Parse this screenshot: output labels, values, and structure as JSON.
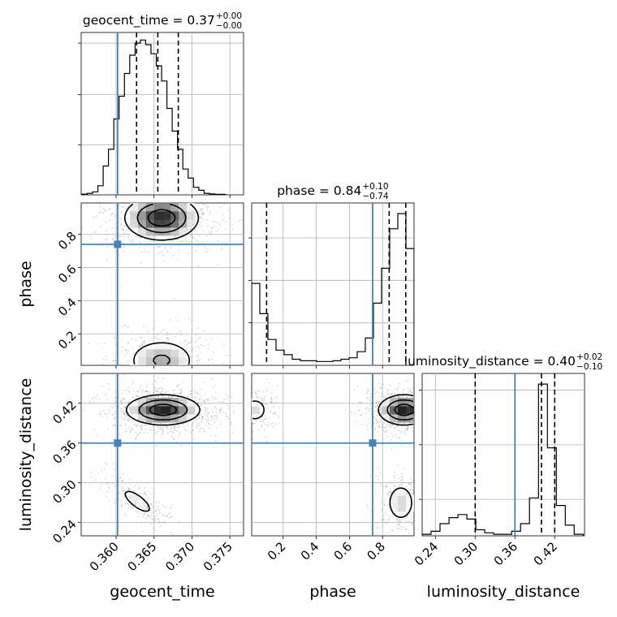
{
  "chart_data": {
    "type": "corner",
    "parameters": [
      "geocent_time",
      "phase",
      "luminosity_distance"
    ],
    "truth_color": "#4682b4",
    "truths": {
      "geocent_time": 0.3602,
      "phase": 0.74,
      "luminosity_distance": 0.36
    },
    "titles": {
      "geocent_time": {
        "name": "geocent_time",
        "value": "0.37",
        "plus": "+0.00",
        "minus": "−0.00"
      },
      "phase": {
        "name": "phase",
        "value": "0.84",
        "plus": "+0.10",
        "minus": "−0.74"
      },
      "luminosity_distance": {
        "name": "luminosity_distance",
        "value": "0.40",
        "plus": "+0.02",
        "minus": "−0.10"
      }
    },
    "axes": {
      "geocent_time": {
        "label": "geocent_time",
        "range": [
          0.3554,
          0.3768
        ],
        "ticks": [
          0.36,
          0.365,
          0.37,
          0.375
        ],
        "tick_labels": [
          "0.360",
          "0.365",
          "0.370",
          "0.375"
        ]
      },
      "phase": {
        "label": "phase",
        "range": [
          0.01,
          0.99
        ],
        "ticks": [
          0.2,
          0.4,
          0.6,
          0.8
        ],
        "tick_labels": [
          "0.2",
          "0.4",
          "0.6",
          "0.8"
        ]
      },
      "luminosity_distance": {
        "label": "luminosity_distance",
        "range": [
          0.22,
          0.465
        ],
        "ticks": [
          0.24,
          0.3,
          0.36,
          0.42
        ],
        "tick_labels": [
          "0.24",
          "0.30",
          "0.36",
          "0.42"
        ]
      }
    },
    "quantile_lines": {
      "geocent_time": [
        0.3627,
        0.3655,
        0.3682
      ],
      "phase": [
        0.1,
        0.84,
        0.94
      ],
      "luminosity_distance": [
        0.3,
        0.4,
        0.42
      ]
    },
    "marginals": {
      "geocent_time": {
        "edges": [
          0.3555,
          0.3562,
          0.3569,
          0.3576,
          0.3583,
          0.359,
          0.3597,
          0.3604,
          0.3611,
          0.3618,
          0.3625,
          0.3632,
          0.3639,
          0.3646,
          0.3653,
          0.366,
          0.3667,
          0.3674,
          0.3681,
          0.3688,
          0.3695,
          0.3702,
          0.3709,
          0.3716,
          0.3723,
          0.373,
          0.3737,
          0.3744
        ],
        "counts": [
          0.5,
          1,
          2,
          6,
          19,
          30,
          50,
          65,
          80,
          92,
          100,
          102,
          99,
          93,
          85,
          75,
          57,
          42,
          30,
          17,
          11,
          5,
          3,
          1,
          0.6,
          0.3,
          0.3
        ],
        "ymax": 107,
        "grid_y": [
          33,
          66,
          100
        ]
      },
      "phase": {
        "edges": [
          0.01,
          0.059,
          0.108,
          0.157,
          0.206,
          0.255,
          0.304,
          0.353,
          0.402,
          0.451,
          0.5,
          0.549,
          0.598,
          0.647,
          0.696,
          0.745,
          0.794,
          0.843,
          0.892,
          0.941,
          0.99
        ],
        "counts": [
          54,
          34,
          17,
          10,
          7,
          4,
          3,
          3,
          2.5,
          2.5,
          3,
          4,
          5,
          9,
          18,
          41,
          64,
          90,
          100,
          77
        ],
        "ymax": 107,
        "grid_y": [
          28,
          56,
          84
        ]
      },
      "luminosity_distance": {
        "edges": [
          0.22,
          0.2335,
          0.247,
          0.2605,
          0.274,
          0.2875,
          0.301,
          0.3145,
          0.328,
          0.3415,
          0.355,
          0.3685,
          0.382,
          0.3955,
          0.409,
          0.4225,
          0.436,
          0.4495,
          0.463
        ],
        "counts": [
          1,
          3,
          8,
          12,
          14,
          11,
          4,
          2,
          1,
          1,
          3,
          8,
          25,
          100,
          58,
          20,
          7,
          1
        ],
        "ymax": 107,
        "grid_y": [
          24,
          60,
          96
        ]
      }
    },
    "joint": {
      "phase|geocent_time": {
        "modes": [
          {
            "x": 0.366,
            "y": 0.9,
            "sx": 0.00235,
            "sy": 0.065,
            "w": 1.0
          },
          {
            "x": 0.366,
            "y": 0.04,
            "sx": 0.00225,
            "sy": 0.065,
            "w": 0.45
          }
        ]
      },
      "luminosity_distance|geocent_time": {
        "modes": [
          {
            "x": 0.3662,
            "y": 0.41,
            "sx": 0.00235,
            "sy": 0.011,
            "w": 1.0
          },
          {
            "x": 0.3628,
            "y": 0.272,
            "sx": 0.0016,
            "sy": 0.015,
            "w": 0.2,
            "rho": -0.75
          }
        ]
      },
      "luminosity_distance|phase": {
        "modes": [
          {
            "x": 0.93,
            "y": 0.41,
            "sx": 0.075,
            "sy": 0.011,
            "w": 1.0
          },
          {
            "x": 0.03,
            "y": 0.41,
            "sx": 0.045,
            "sy": 0.011,
            "w": 0.25
          },
          {
            "x": 0.91,
            "y": 0.27,
            "sx": 0.05,
            "sy": 0.017,
            "w": 0.28
          }
        ]
      }
    }
  }
}
